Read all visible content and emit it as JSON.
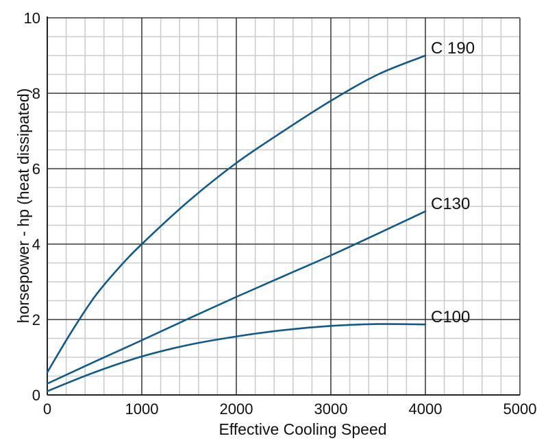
{
  "chart_data": {
    "type": "line",
    "title": "",
    "xlabel": "Effective Cooling Speed",
    "ylabel": "horsepower - hp  (heat dissipated)",
    "xlim": [
      0,
      5000
    ],
    "ylim": [
      0,
      10
    ],
    "x_ticks": [
      "0",
      "1000",
      "2000",
      "3000",
      "4000",
      "5000"
    ],
    "y_ticks": [
      "0",
      "2",
      "4",
      "6",
      "8",
      "10"
    ],
    "minor_grid_x_step": 200,
    "minor_grid_y_step": 0.5,
    "grid": true,
    "colors": {
      "series": "#0d5a8f",
      "major_grid": "#222222",
      "minor_grid": "#cccccc",
      "axis": "#222222"
    },
    "series": [
      {
        "name": "C 190",
        "x": [
          0,
          250,
          500,
          750,
          1000,
          1500,
          2000,
          2500,
          3000,
          3500,
          4000
        ],
        "y": [
          0.6,
          1.65,
          2.6,
          3.35,
          4.0,
          5.15,
          6.15,
          7.0,
          7.8,
          8.5,
          9.0
        ]
      },
      {
        "name": "C130",
        "x": [
          0,
          500,
          1000,
          1500,
          2000,
          2500,
          3000,
          3500,
          4000
        ],
        "y": [
          0.3,
          0.88,
          1.45,
          2.03,
          2.6,
          3.15,
          3.7,
          4.28,
          4.87
        ]
      },
      {
        "name": "C100",
        "x": [
          0,
          500,
          1000,
          1500,
          2000,
          2500,
          3000,
          3500,
          4000
        ],
        "y": [
          0.1,
          0.6,
          1.02,
          1.33,
          1.55,
          1.72,
          1.83,
          1.88,
          1.87
        ]
      }
    ]
  }
}
